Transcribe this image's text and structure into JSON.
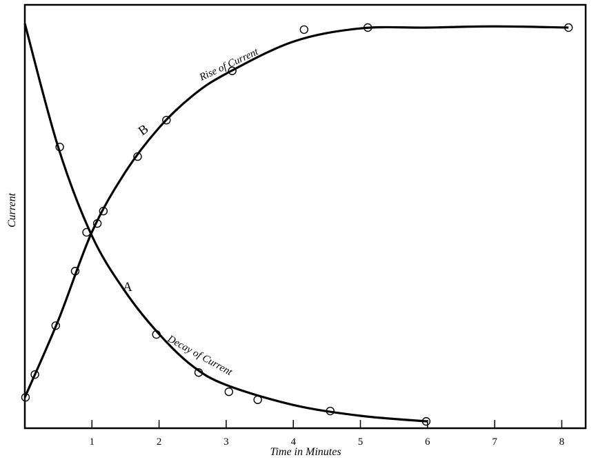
{
  "chart_data": {
    "type": "line",
    "title": "",
    "xlabel": "Time in Minutes",
    "ylabel": "Current",
    "xlim": [
      0,
      8.4
    ],
    "ylim": [
      0,
      1.06
    ],
    "x_ticks": [
      "1",
      "2",
      "3",
      "4",
      "5",
      "6",
      "7",
      "8"
    ],
    "grid": false,
    "legend": "none",
    "series": [
      {
        "name": "A",
        "label": "Decay of Current",
        "curve": [
          [
            0,
            1.01
          ],
          [
            0.5,
            0.7
          ],
          [
            1,
            0.48
          ],
          [
            1.5,
            0.34
          ],
          [
            2,
            0.235
          ],
          [
            2.5,
            0.155
          ],
          [
            3,
            0.108
          ],
          [
            4,
            0.058
          ],
          [
            5,
            0.031
          ],
          [
            6,
            0.017
          ]
        ],
        "points": [
          [
            0.52,
            0.702
          ],
          [
            1.96,
            0.234
          ],
          [
            2.59,
            0.139
          ],
          [
            3.04,
            0.091
          ],
          [
            3.47,
            0.071
          ],
          [
            4.55,
            0.043
          ],
          [
            5.98,
            0.017
          ]
        ]
      },
      {
        "name": "B",
        "label": "Rise of Current",
        "curve": [
          [
            0,
            0.077
          ],
          [
            0.5,
            0.27
          ],
          [
            1,
            0.49
          ],
          [
            1.5,
            0.64
          ],
          [
            2,
            0.75
          ],
          [
            2.5,
            0.83
          ],
          [
            3,
            0.885
          ],
          [
            4,
            0.965
          ],
          [
            5,
            0.998
          ],
          [
            6,
            1.0
          ],
          [
            7,
            1.003
          ],
          [
            8.1,
            1.0
          ]
        ],
        "points": [
          [
            0.01,
            0.077
          ],
          [
            0.15,
            0.134
          ],
          [
            0.46,
            0.256
          ],
          [
            0.75,
            0.392
          ],
          [
            0.92,
            0.489
          ],
          [
            1.08,
            0.511
          ],
          [
            1.17,
            0.542
          ],
          [
            1.68,
            0.678
          ],
          [
            2.11,
            0.769
          ],
          [
            3.09,
            0.892
          ],
          [
            4.16,
            0.995
          ],
          [
            5.11,
            1.0
          ],
          [
            8.1,
            1.0
          ]
        ]
      }
    ]
  }
}
